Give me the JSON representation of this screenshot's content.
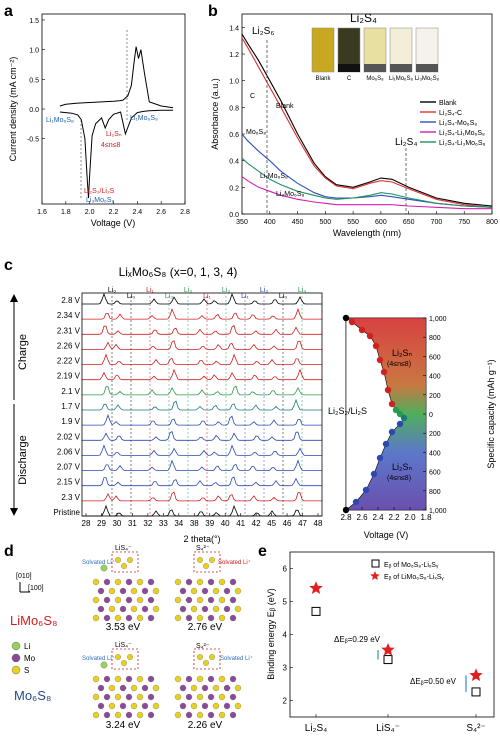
{
  "panels": {
    "a": {
      "letter": "a",
      "ylabel": "Current density (mA cm⁻²)",
      "xlabel": "Voltage (V)",
      "xticks": [
        "1.6",
        "1.8",
        "2.0",
        "2.2",
        "2.4",
        "2.6",
        "2.8"
      ],
      "yticks": [
        "-0.5",
        "0.0",
        "0.5",
        "1.0",
        "1.5"
      ],
      "labels": {
        "li1_left": "Li₁Mo₆S₈",
        "li1_right": "Li₁Mo₆S₈",
        "li2sn": "Li₂Sₙ",
        "range": "4≤n≤8",
        "li2s2": "Li₂S₂/Li₂S",
        "li3": "Li₃Mo₆S₈"
      },
      "chart_data": {
        "type": "line",
        "xlim": [
          1.6,
          2.8
        ],
        "ylim": [
          -1.6,
          1.6
        ],
        "series": [
          {
            "x": [
              1.75,
              1.8,
              1.85,
              1.9,
              1.93,
              1.96,
              1.98,
              1.99,
              2.0,
              2.02,
              2.05,
              2.1,
              2.13,
              2.16,
              2.2,
              2.26,
              2.3,
              2.35,
              2.4,
              2.45,
              2.5,
              2.6,
              2.7
            ],
            "y": [
              -0.05,
              -0.06,
              -0.07,
              -0.1,
              -0.18,
              -0.5,
              -1.2,
              -1.5,
              -1.1,
              -0.45,
              -0.25,
              -0.15,
              -0.32,
              -0.18,
              -0.09,
              -0.05,
              -0.42,
              -0.15,
              -0.06,
              -0.04,
              -0.03,
              -0.02,
              -0.02
            ]
          },
          {
            "x": [
              2.7,
              2.6,
              2.5,
              2.46,
              2.43,
              2.41,
              2.39,
              2.37,
              2.35,
              2.32,
              2.28,
              2.25,
              2.2,
              2.1,
              2.0,
              1.9,
              1.8,
              1.75
            ],
            "y": [
              0.02,
              0.05,
              0.12,
              0.6,
              1.0,
              0.85,
              1.05,
              0.75,
              0.4,
              0.22,
              0.15,
              0.14,
              0.13,
              0.12,
              0.11,
              0.1,
              0.08,
              0.05
            ]
          }
        ]
      }
    },
    "b": {
      "letter": "b",
      "title": "Li₂S₄",
      "ylabel": "Absorbance (a.u.)",
      "xlabel": "Wavelength (nm)",
      "xticks": [
        "350",
        "400",
        "450",
        "500",
        "550",
        "600",
        "650",
        "700",
        "750",
        "800"
      ],
      "yticks": [
        "0.0",
        "0.2",
        "0.4",
        "0.6",
        "0.8",
        "1.0",
        "1.2",
        "1.4"
      ],
      "vlabel1": "Li₂S₆",
      "vlabel2": "Li₂S₄",
      "inline": {
        "c": "C",
        "blank": "Blank",
        "mo6s8": "Mo₆S₈",
        "li1": "Li₁Mo₆S₈",
        "li3": "Li₃Mo₆S₈"
      },
      "vials": [
        "Blank",
        "C",
        "Mo₆S₈",
        "Li₁Mo₆S₈",
        "Li₃Mo₆S₈"
      ],
      "legend": [
        "Blank",
        "Li₂S₄-C",
        "Li₂S₄-Mo₆S₈",
        "Li₂S₄-Li₁Mo₆S₈",
        "Li₂S₄-Li₃Mo₆S₈"
      ],
      "colors": [
        "#000000",
        "#e03030",
        "#3050c0",
        "#d020b0",
        "#209060"
      ],
      "chart_data": {
        "type": "line",
        "xlim": [
          350,
          800
        ],
        "ylim": [
          0,
          1.5
        ],
        "x": [
          350,
          360,
          380,
          400,
          420,
          450,
          480,
          500,
          520,
          550,
          580,
          600,
          620,
          650,
          700,
          750,
          800
        ],
        "series": [
          {
            "name": "Blank",
            "values": [
              1.35,
              1.28,
              1.15,
              1.0,
              0.85,
              0.6,
              0.38,
              0.28,
              0.22,
              0.2,
              0.24,
              0.27,
              0.26,
              0.2,
              0.12,
              0.08,
              0.06
            ]
          },
          {
            "name": "Li₂S₄-C",
            "values": [
              1.32,
              1.25,
              1.1,
              0.95,
              0.8,
              0.57,
              0.36,
              0.27,
              0.21,
              0.19,
              0.23,
              0.25,
              0.24,
              0.19,
              0.11,
              0.07,
              0.05
            ]
          },
          {
            "name": "Li₂S₄-Mo₆S₈",
            "values": [
              0.6,
              0.55,
              0.47,
              0.4,
              0.32,
              0.23,
              0.16,
              0.13,
              0.12,
              0.12,
              0.13,
              0.14,
              0.13,
              0.11,
              0.08,
              0.06,
              0.05
            ]
          },
          {
            "name": "Li₂S₄-Li₁Mo₆S₈",
            "values": [
              0.28,
              0.25,
              0.2,
              0.17,
              0.14,
              0.11,
              0.09,
              0.08,
              0.07,
              0.07,
              0.07,
              0.07,
              0.07,
              0.06,
              0.05,
              0.04,
              0.04
            ]
          },
          {
            "name": "Li₂S₄-Li₃Mo₆S₈",
            "values": [
              0.42,
              0.38,
              0.32,
              0.26,
              0.22,
              0.17,
              0.14,
              0.12,
              0.11,
              0.12,
              0.14,
              0.16,
              0.15,
              0.12,
              0.08,
              0.06,
              0.05
            ]
          }
        ]
      }
    },
    "c": {
      "letter": "c",
      "title": "LiₓMo₆S₈ (x=0, 1, 3, 4)",
      "voltages": [
        "2.8 V",
        "2.34 V",
        "2.31 V",
        "2.26 V",
        "2.22 V",
        "2.19 V",
        "2.1 V",
        "1.7 V",
        "1.9 V",
        "2.02 V",
        "2.06 V",
        "2.07 V",
        "2.15 V",
        "2.3 V",
        "Pristine"
      ],
      "side_top": "Charge",
      "side_bottom": "Discharge",
      "xlabel": "2 theta(°)",
      "xticks": [
        "28",
        "29",
        "30",
        "31",
        "32",
        "33",
        "34",
        "38",
        "39",
        "40",
        "41",
        "42",
        "45",
        "46",
        "47",
        "48"
      ],
      "phase_labels": [
        "Li₀",
        "Li₀",
        "Li₁",
        "Li₃",
        "Li₃",
        "Li₁",
        "Li₃",
        "Li₁",
        "Li₃",
        "Li₀",
        "Li₄"
      ],
      "right": {
        "xlabel": "Voltage (V)",
        "ylabel": "Specific capacity (mAh g⁻¹)",
        "xticks": [
          "2.8",
          "2.6",
          "2.4",
          "2.2",
          "2.0",
          "1.8"
        ],
        "yticks": [
          "1,000",
          "800",
          "600",
          "400",
          "200",
          "0",
          "200",
          "400",
          "600",
          "800",
          "1,000"
        ],
        "top_label": "Li₂Sₙ",
        "top_range": "(4≤n≤8)",
        "mid_label": "Li₂S₂/Li₂S",
        "bot_label": "Li₂Sₙ",
        "bot_range": "(4≤n≤8)"
      }
    },
    "d": {
      "letter": "d",
      "axes_top": "[010]",
      "axes_bottom": "[100]",
      "row1_name": "LiMo₆S₈",
      "row2_name": "Mo₆S₈",
      "legend": [
        "Li",
        "Mo",
        "S"
      ],
      "top_left_label": "LiS₄⁻",
      "top_right_label": "S₄²⁻",
      "bot_left_label": "LiS₄⁻",
      "bot_right_label": "S₄²⁻",
      "solvated": "Solvated Li⁺",
      "energies": [
        "3.53 eV",
        "2.76 eV",
        "3.24 eV",
        "2.26 eV"
      ]
    },
    "e": {
      "letter": "e",
      "ylabel": "Binding energy Eᵦ (eV)",
      "legend": [
        "Eᵦ of Mo₆S₈-LiₓSᵧ",
        "Eᵦ of LiMo₆S₈-LiₓSᵧ"
      ],
      "delta1": "ΔEᵦ=0.29 eV",
      "delta2": "ΔEᵦ=0.50 eV",
      "chart_data": {
        "type": "scatter",
        "categories": [
          "Li₂S₄",
          "LiS₄⁻",
          "S₄²⁻"
        ],
        "ylim": [
          1.5,
          6.5
        ],
        "yticks": [
          "2",
          "3",
          "4",
          "5",
          "6"
        ],
        "series": [
          {
            "name": "Eᵦ of Mo₆S₈-LiₓSᵧ",
            "values": [
              4.7,
              3.24,
              2.26
            ]
          },
          {
            "name": "Eᵦ of LiMo₆S₈-LiₓSᵧ",
            "values": [
              5.4,
              3.53,
              2.76
            ]
          }
        ]
      }
    }
  }
}
